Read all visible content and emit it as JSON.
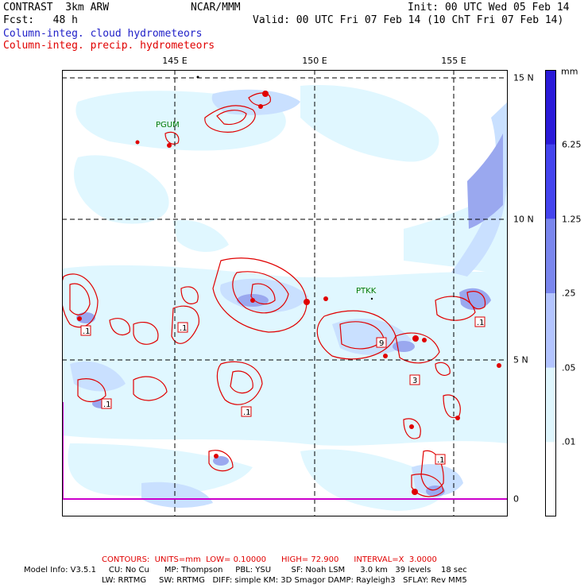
{
  "header": {
    "model_title": "CONTRAST  3km ARW",
    "organization": "NCAR/MMM",
    "init": "Init: 00 UTC Wed 05 Feb 14",
    "fcst": "Fcst:   48 h",
    "valid": "Valid: 00 UTC Fri 07 Feb 14 (10 ChT Fri 07 Feb 14)",
    "field_cloud": "Column-integ. cloud hydrometeors",
    "field_precip": "Column-integ. precip. hydrometeors"
  },
  "map": {
    "longitude_labels": [
      "145 E",
      "150 E",
      "155 E"
    ],
    "latitude_labels": [
      "15 N",
      "10 N",
      "5 N",
      "0"
    ],
    "stations": [
      "PGUM",
      "PTKK"
    ],
    "contour_labels": [
      ".1",
      ".1",
      ".1",
      ".1",
      "9",
      "3",
      ".1",
      ".1"
    ],
    "colors": {
      "cloud_light": "#e0f7ff",
      "cloud_mid": "#c9e0ff",
      "cloud_dark": "#9aa8ef",
      "precip_contour": "#e00000",
      "station": "#007a00"
    }
  },
  "colorbar": {
    "unit": "mm",
    "levels": [
      "6.25",
      "1.25",
      ".25",
      ".05",
      ".01"
    ],
    "colors": [
      "#2a1ad8",
      "#4444ee",
      "#7a86ee",
      "#b3c4ff",
      "#dff6fd",
      "#ffffff"
    ]
  },
  "footer": {
    "contours": "CONTOURS:  UNITS=mm  LOW= 0.10000      HIGH= 72.900      INTERVAL=X  3.0000",
    "model_info": "Model Info: V3.5.1     CU: No Cu      MP: Thompson     PBL: YSU        SF: Noah LSM      3.0 km   39 levels    18 sec",
    "physics": "LW: RRTMG     SW: RRTMG   DIFF: simple KM: 3D Smagor DAMP: Rayleigh3   SFLAY: Rev MM5"
  }
}
